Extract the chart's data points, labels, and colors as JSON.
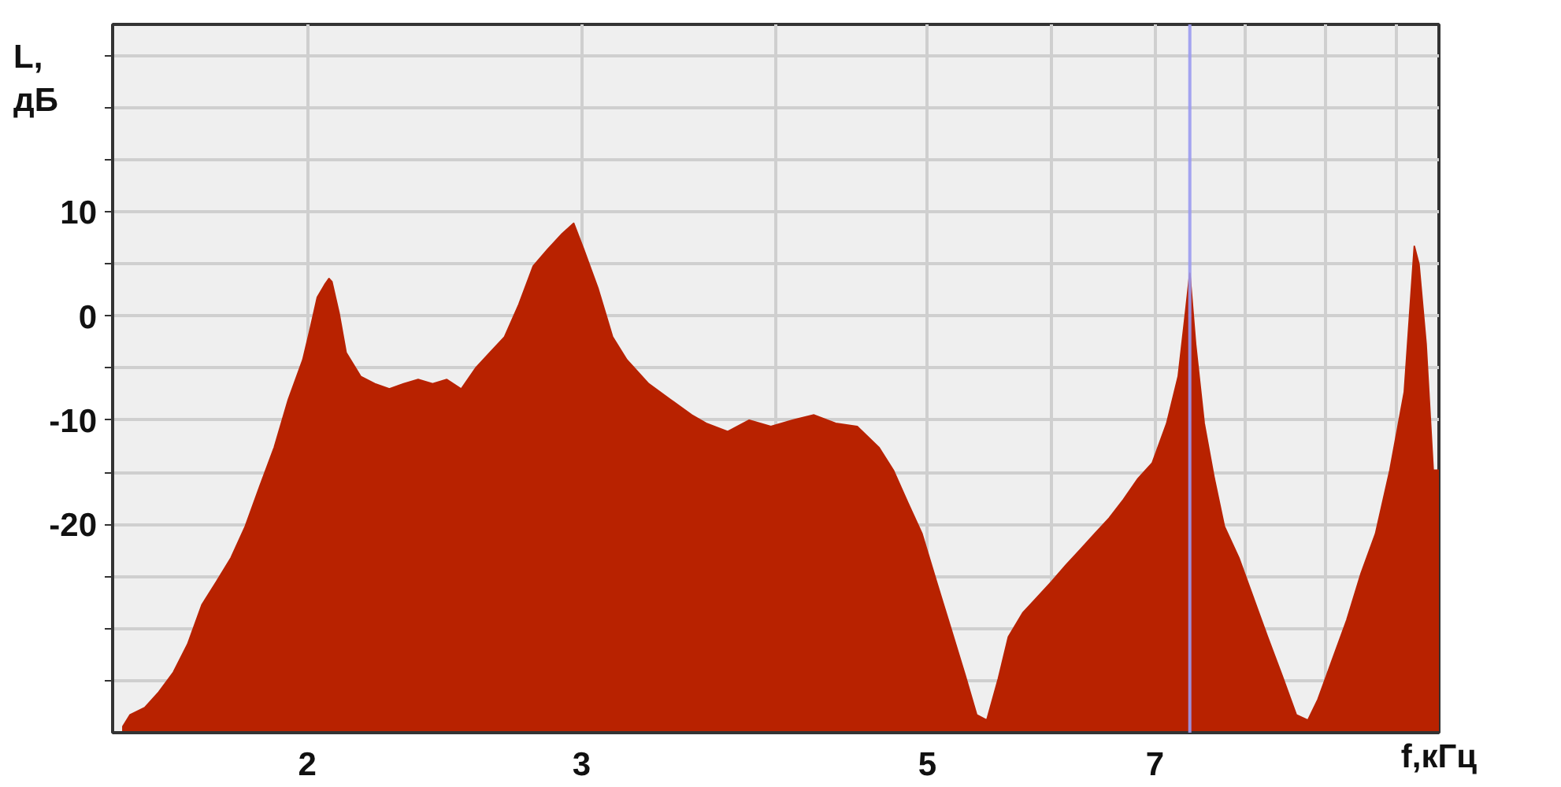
{
  "chart_data": {
    "type": "area",
    "xlabel": "f,кГц",
    "ylabel": "L, дБ",
    "log": "x",
    "grid": true,
    "xlim": [
      1.5,
      10.65
    ],
    "xticks": [
      2,
      3,
      {
        "value": 4,
        "label": null
      },
      5,
      {
        "value": 6,
        "label": null
      },
      7,
      {
        "value": 8,
        "label": null
      },
      {
        "value": 9,
        "label": null
      },
      {
        "value": 10,
        "label": null
      }
    ],
    "ylim": [
      -40,
      28
    ],
    "yticks": [
      {
        "value": -35,
        "label": null
      },
      {
        "value": -30,
        "label": null
      },
      {
        "value": -25,
        "label": null
      },
      -20,
      {
        "value": -15,
        "label": null
      },
      -10,
      {
        "value": -5,
        "label": null
      },
      0,
      {
        "value": 5,
        "label": null
      },
      10,
      {
        "value": 15,
        "label": null
      },
      {
        "value": 20,
        "label": null
      },
      {
        "value": 25,
        "label": null
      }
    ],
    "ref_lines": [
      {
        "axis": "x",
        "value": 7.37,
        "color": "#9a9af0"
      }
    ],
    "series": [
      {
        "color": "#b82200",
        "x": [
          1.523,
          1.539,
          1.573,
          1.606,
          1.641,
          1.676,
          1.712,
          1.749,
          1.787,
          1.825,
          1.864,
          1.905,
          1.945,
          1.987,
          2.009,
          2.03,
          2.052,
          2.065,
          2.074,
          2.096,
          2.118,
          2.164,
          2.21,
          2.258,
          2.306,
          2.356,
          2.407,
          2.458,
          2.511,
          2.565,
          2.62,
          2.677,
          2.734,
          2.793,
          2.853,
          2.915,
          2.965,
          3.009,
          3.074,
          3.14,
          3.207,
          3.312,
          3.419,
          3.53,
          3.606,
          3.723,
          3.843,
          3.968,
          4.097,
          4.229,
          4.367,
          4.508,
          4.654,
          4.755,
          4.857,
          4.961,
          5.068,
          5.177,
          5.288,
          5.379,
          5.46,
          5.554,
          5.637,
          5.758,
          5.882,
          6.008,
          6.138,
          6.27,
          6.404,
          6.542,
          6.683,
          6.827,
          6.973,
          7.123,
          7.245,
          7.323,
          7.37,
          7.433,
          7.528,
          7.641,
          7.756,
          7.923,
          8.093,
          8.267,
          8.445,
          8.627,
          8.775,
          8.907,
          9.098,
          9.294,
          9.493,
          9.698,
          9.906,
          10.119,
          10.27,
          10.34,
          10.45,
          10.56
        ],
        "values": [
          -39.4,
          -38.3,
          -37.6,
          -36.1,
          -34.2,
          -31.5,
          -27.7,
          -25.5,
          -23.2,
          -20.2,
          -16.4,
          -12.6,
          -8.0,
          -4.2,
          -1.2,
          1.8,
          3.0,
          3.6,
          3.3,
          0.3,
          -3.5,
          -5.8,
          -6.5,
          -7.0,
          -6.5,
          -6.1,
          -6.5,
          -6.1,
          -7.0,
          -5.0,
          -3.5,
          -2.0,
          1.1,
          4.8,
          6.4,
          7.9,
          8.9,
          6.4,
          2.6,
          -2.0,
          -4.2,
          -6.5,
          -8.0,
          -9.5,
          -10.3,
          -11.1,
          -10.0,
          -10.6,
          -10.0,
          -9.5,
          -10.3,
          -10.6,
          -12.6,
          -14.8,
          -17.9,
          -20.9,
          -25.5,
          -30.0,
          -34.5,
          -38.3,
          -38.8,
          -34.8,
          -30.8,
          -28.5,
          -27.0,
          -25.5,
          -23.9,
          -22.4,
          -20.9,
          -19.4,
          -17.6,
          -15.6,
          -14.1,
          -10.3,
          -5.8,
          0.3,
          4.1,
          -2.7,
          -10.3,
          -15.6,
          -20.2,
          -23.2,
          -27.0,
          -30.8,
          -34.5,
          -38.3,
          -38.8,
          -36.8,
          -33.0,
          -29.2,
          -24.7,
          -20.9,
          -14.8,
          -7.3,
          6.7,
          5.0,
          -2.7,
          -14.8
        ]
      }
    ]
  }
}
